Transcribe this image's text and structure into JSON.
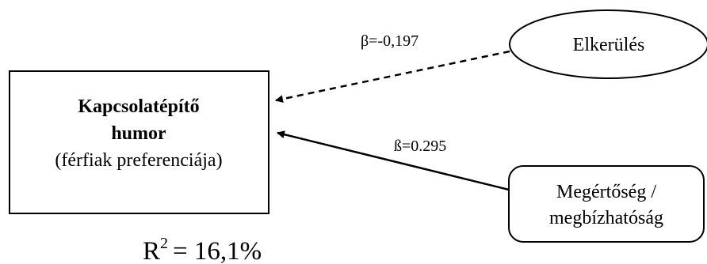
{
  "target": {
    "title_line1": "Kapcsolatépítő",
    "title_line2": "humor",
    "subtitle": "(férfiak preferenciája)"
  },
  "predictors": [
    {
      "label": "Elkerülés",
      "shape": "ellipse"
    },
    {
      "label_line1": "Megértőség /",
      "label_line2": "megbízhatóság",
      "shape": "rounded-rectangle"
    }
  ],
  "paths": [
    {
      "label": "β=-0,197",
      "style": "dashed",
      "from": "Elkerülés",
      "to": "Kapcsolatépítő humor"
    },
    {
      "label": "ß=0.295",
      "style": "solid",
      "from": "Megértőség / megbízhatóság",
      "to": "Kapcsolatépítő humor"
    }
  ],
  "r_squared": {
    "base": "R",
    "exponent": "2",
    "value": "= 16,1%"
  },
  "colors": {
    "stroke": "#000000",
    "background": "#ffffff"
  }
}
